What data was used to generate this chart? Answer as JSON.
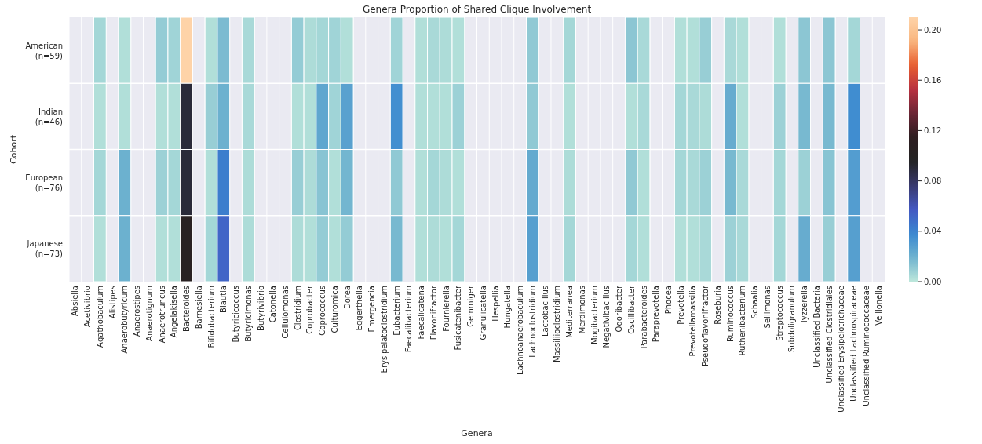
{
  "chart_data": {
    "type": "heatmap",
    "title": "Genera Proportion of Shared Clique Involvement",
    "xlabel": "Genera",
    "ylabel": "Cohort",
    "categories": [
      "Absiella",
      "Acetivibrio",
      "Agathobaculum",
      "Alistipes",
      "Anaerobutyricum",
      "Anaerostipes",
      "Anaerotignum",
      "Anaerotruncus",
      "Angelakisella",
      "Bacteroides",
      "Barnesiella",
      "Bifidobacterium",
      "Blautia",
      "Butyricicoccus",
      "Butyricimonas",
      "Butyrivibrio",
      "Catonella",
      "Cellulomonas",
      "Clostridium",
      "Coprobacter",
      "Coprococcus",
      "Culturomica",
      "Dorea",
      "Eggerthella",
      "Emergencia",
      "Erysipelatoclostridium",
      "Eubacterium",
      "Faecalibacterium",
      "Faecalicatena",
      "Flavonifractor",
      "Fournierella",
      "Fusicatenibacter",
      "Gemmiger",
      "Granulicatella",
      "Hespellia",
      "Hungatella",
      "Lachnoanaerobaculum",
      "Lachnoclostridium",
      "Lactobacillus",
      "Massiliioclostridium",
      "Mediterranea",
      "Merdimonas",
      "Mogibacterium",
      "Negativibacillus",
      "Odoribacter",
      "Oscillibacter",
      "Parabacteroides",
      "Paraprevotella",
      "Phocea",
      "Prevotella",
      "Prevotellamassilia",
      "Pseudoflavonifractor",
      "Roseburia",
      "Ruminococcus",
      "Ruthenibacterium",
      "Schaalia",
      "Sellimonas",
      "Streptococcus",
      "Subdoligranulum",
      "Tyzzerella",
      "Unclassified Bacteria",
      "Unclassified Clostridiales",
      "Unclassified Erysipelotrichaceae",
      "Unclassified Lachnospiraceae",
      "Unclassified Ruminococcaceae",
      "Veillonella"
    ],
    "y_categories": [
      "American\n(n=59)",
      "Indian\n(n=46)",
      "European\n(n=76)",
      "Japanese\n(n=73)"
    ],
    "cells": [
      [
        null,
        null,
        0.006,
        null,
        0.003,
        null,
        null,
        0.01,
        0.007,
        0.21,
        null,
        0.003,
        0.016,
        null,
        0.005,
        null,
        null,
        null,
        0.01,
        0.004,
        0.006,
        0.007,
        0.003,
        null,
        null,
        null,
        0.007,
        null,
        0.003,
        0.005,
        0.004,
        0.003,
        null,
        null,
        null,
        null,
        null,
        0.011,
        null,
        null,
        0.006,
        null,
        null,
        null,
        null,
        0.012,
        0.005,
        null,
        null,
        0.003,
        0.003,
        0.009,
        null,
        0.005,
        0.003,
        null,
        null,
        0.003,
        null,
        0.012,
        null,
        0.012,
        null,
        0.006,
        null,
        null
      ],
      [
        null,
        null,
        0.003,
        null,
        0.003,
        null,
        null,
        0.003,
        0.003,
        0.09,
        null,
        0.009,
        0.02,
        null,
        0.005,
        null,
        null,
        null,
        0.003,
        0.003,
        0.025,
        0.007,
        0.027,
        null,
        null,
        null,
        0.035,
        null,
        0.003,
        0.003,
        0.003,
        0.008,
        null,
        null,
        null,
        null,
        null,
        0.011,
        null,
        null,
        0.003,
        null,
        null,
        null,
        null,
        0.003,
        0.005,
        null,
        null,
        0.006,
        0.005,
        0.004,
        null,
        0.022,
        0.003,
        null,
        null,
        0.008,
        null,
        0.017,
        null,
        0.017,
        null,
        0.036,
        null,
        null
      ],
      [
        null,
        null,
        0.006,
        null,
        0.02,
        null,
        null,
        0.008,
        0.006,
        0.09,
        null,
        0.003,
        0.042,
        null,
        0.004,
        null,
        null,
        null,
        0.009,
        0.004,
        0.013,
        0.003,
        0.018,
        null,
        null,
        null,
        0.011,
        null,
        0.003,
        0.006,
        0.004,
        0.003,
        null,
        null,
        null,
        null,
        null,
        0.023,
        null,
        null,
        0.004,
        null,
        null,
        null,
        null,
        0.011,
        0.003,
        null,
        null,
        0.006,
        0.005,
        0.008,
        null,
        0.017,
        0.005,
        null,
        null,
        0.006,
        null,
        0.008,
        null,
        0.013,
        null,
        0.029,
        null,
        null
      ],
      [
        null,
        null,
        0.003,
        null,
        0.02,
        null,
        null,
        0.003,
        0.003,
        0.105,
        null,
        0.006,
        0.052,
        null,
        0.004,
        null,
        null,
        null,
        0.004,
        0.003,
        0.01,
        0.003,
        0.01,
        null,
        null,
        null,
        0.017,
        null,
        0.003,
        0.004,
        0.003,
        0.006,
        null,
        null,
        null,
        null,
        null,
        0.028,
        null,
        null,
        0.006,
        null,
        null,
        null,
        null,
        0.006,
        0.003,
        null,
        null,
        0.003,
        0.003,
        0.005,
        null,
        0.008,
        0.005,
        null,
        null,
        0.006,
        null,
        0.022,
        null,
        0.009,
        null,
        0.028,
        null,
        null
      ]
    ],
    "clim": [
      0,
      0.21
    ],
    "cticks": [
      {
        "value": 0,
        "label": "0.00"
      },
      {
        "value": 0.04,
        "label": "0.04"
      },
      {
        "value": 0.08,
        "label": "0.08"
      },
      {
        "value": 0.12,
        "label": "0.12"
      },
      {
        "value": 0.16,
        "label": "0.16"
      },
      {
        "value": 0.2,
        "label": "0.20"
      }
    ]
  }
}
